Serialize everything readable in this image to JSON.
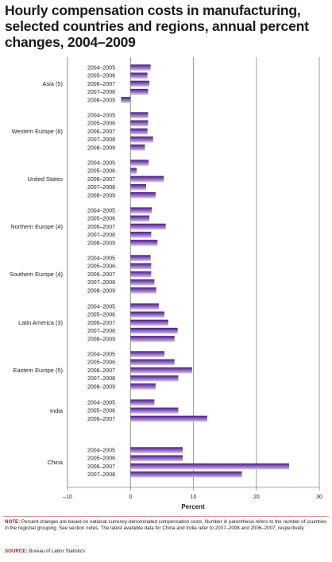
{
  "chart_data": {
    "type": "bar",
    "orientation": "horizontal",
    "title": "Hourly compensation costs in manufacturing,\nselected countries and regions, annual percent\nchanges, 2004–2009",
    "xlabel": "Percent",
    "ylabel": "",
    "xlim": [
      -10,
      30
    ],
    "xticks": [
      "–10",
      "0",
      "10",
      "20",
      "30"
    ],
    "grid": true,
    "groups": [
      {
        "name": "Asia (5)",
        "categories": [
          "2004–2005",
          "2005–2006",
          "2006–2007",
          "2007–2008",
          "2008–2009"
        ],
        "values": [
          3.2,
          2.7,
          3.0,
          2.8,
          -1.5
        ]
      },
      {
        "name": "Western Europe (8)",
        "categories": [
          "2004–2005",
          "2005–2006",
          "2006–2007",
          "2007–2008",
          "2008–2009"
        ],
        "values": [
          2.8,
          2.8,
          2.7,
          3.6,
          2.3
        ]
      },
      {
        "name": "United States",
        "categories": [
          "2004–2005",
          "2005–2006",
          "2006–2007",
          "2007–2008",
          "2008–2009"
        ],
        "values": [
          2.9,
          1.0,
          5.3,
          2.5,
          4.0
        ]
      },
      {
        "name": "Northern Europe (4)",
        "categories": [
          "2004–2005",
          "2005–2006",
          "2006–2007",
          "2007–2008",
          "2008–2009"
        ],
        "values": [
          3.4,
          3.0,
          5.6,
          3.3,
          4.3
        ]
      },
      {
        "name": "Southern Europe (4)",
        "categories": [
          "2004–2005",
          "2005–2006",
          "2006–2007",
          "2007–2008",
          "2008–2009"
        ],
        "values": [
          3.2,
          3.3,
          3.3,
          3.8,
          4.1
        ]
      },
      {
        "name": "Latin America (3)",
        "categories": [
          "2004–2005",
          "2005–2006",
          "2006–2007",
          "2007–2008",
          "2008–2009"
        ],
        "values": [
          4.5,
          5.4,
          6.0,
          7.5,
          7.0
        ]
      },
      {
        "name": "Eastern Europe (5)",
        "categories": [
          "2004–2005",
          "2005–2006",
          "2006–2007",
          "2007–2008",
          "2008–2009"
        ],
        "values": [
          5.4,
          7.0,
          9.8,
          7.6,
          4.0
        ]
      },
      {
        "name": "India",
        "categories": [
          "2004–2005",
          "2005–2006",
          "2006–2007"
        ],
        "values": [
          3.8,
          7.6,
          12.2
        ]
      },
      {
        "name": "China",
        "categories": [
          "2004–2005",
          "2005–2006",
          "2006–2007",
          "2007–2008"
        ],
        "values": [
          8.3,
          8.3,
          25.2,
          17.7
        ]
      }
    ]
  },
  "note": {
    "label": "NOTE:",
    "text": " Percent changes are based on national currency-denominated compensation costs. Number in parenthesis refers to the number of countries in the regional grouping. See section notes. The latest available data for China and India refer to 2007–2008 and 2006–2007, respectively."
  },
  "source": {
    "label": "SOURCE:",
    "text": " Bureau of Labor Statistics"
  },
  "colors": {
    "bar_dark": "#4a1f7a",
    "bar_light": "#d6c4ea",
    "grid": "#8a8a8a",
    "text": "#222222",
    "note_label": "#9b1b1b"
  }
}
